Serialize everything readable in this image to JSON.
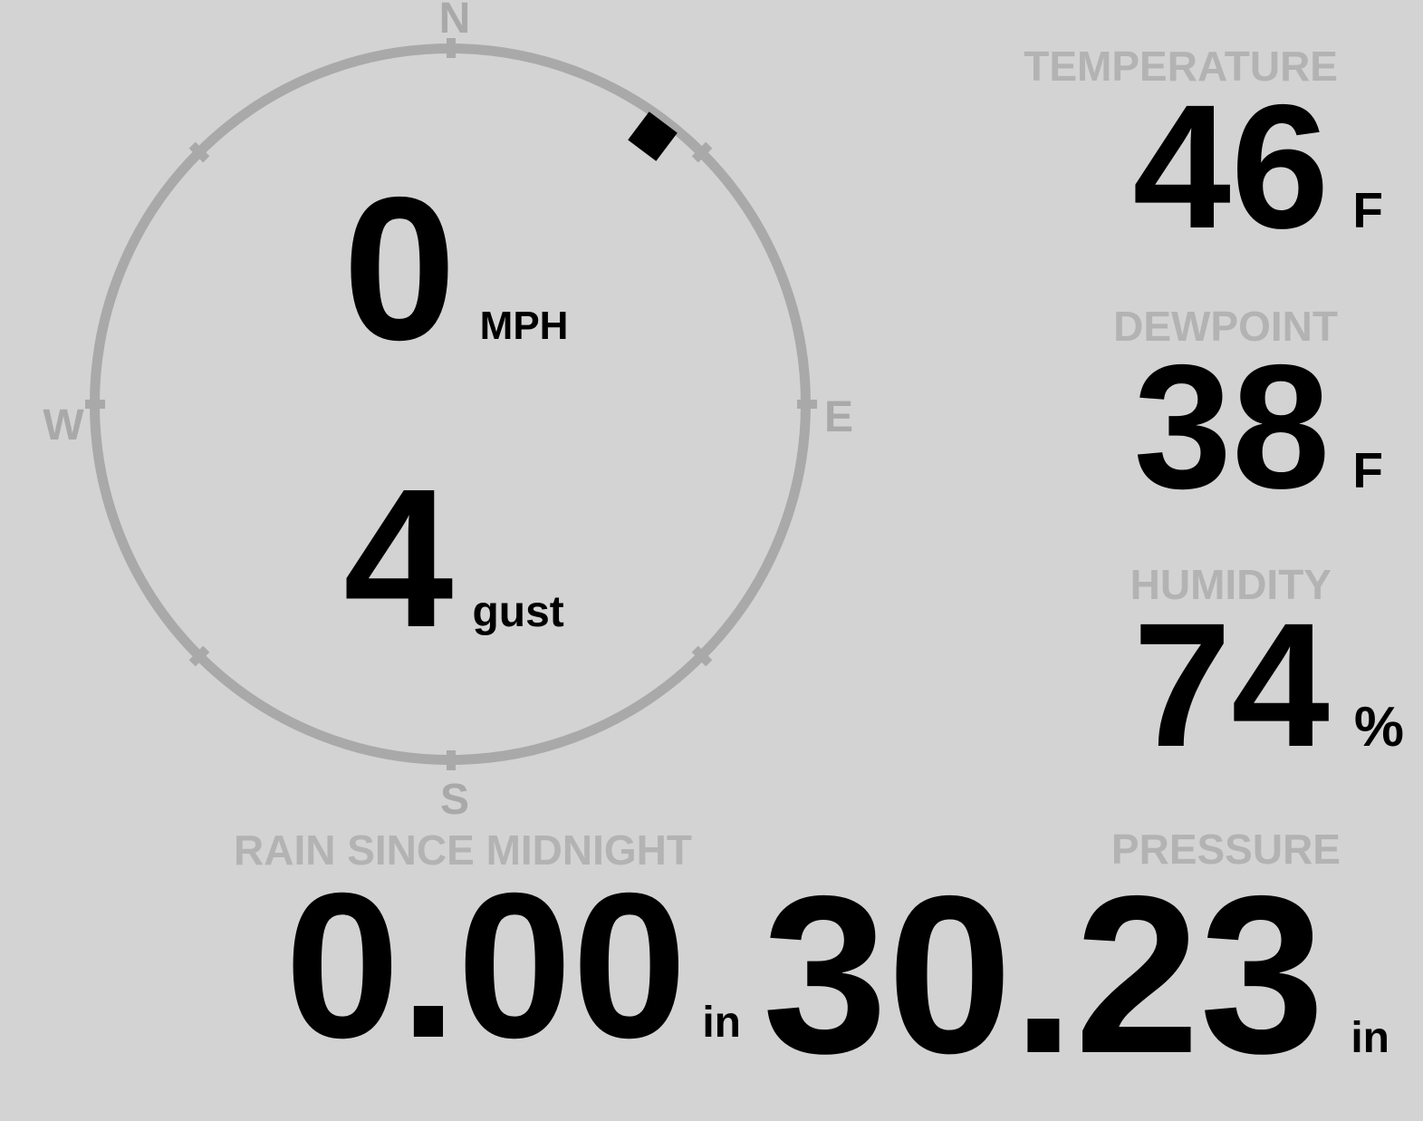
{
  "colors": {
    "background": "#d3d3d3",
    "gauge_gray": "#a9a9a9",
    "label_gray": "#b3b3b3",
    "value_black": "#000000"
  },
  "wind": {
    "speed": "0",
    "speed_unit": "MPH",
    "gust": "4",
    "gust_unit": "gust",
    "direction_degrees": 37,
    "compass": {
      "north": "N",
      "east": "E",
      "south": "S",
      "west": "W"
    }
  },
  "stats": {
    "temperature": {
      "label": "TEMPERATURE",
      "value": "46",
      "unit": "F"
    },
    "dewpoint": {
      "label": "DEWPOINT",
      "value": "38",
      "unit": "F"
    },
    "humidity": {
      "label": "HUMIDITY",
      "value": "74",
      "unit": "%"
    },
    "rain_since_midnight": {
      "label": "RAIN SINCE MIDNIGHT",
      "value": "0.00",
      "unit": "in"
    },
    "pressure": {
      "label": "PRESSURE",
      "value": "30.23",
      "unit": "in"
    }
  }
}
